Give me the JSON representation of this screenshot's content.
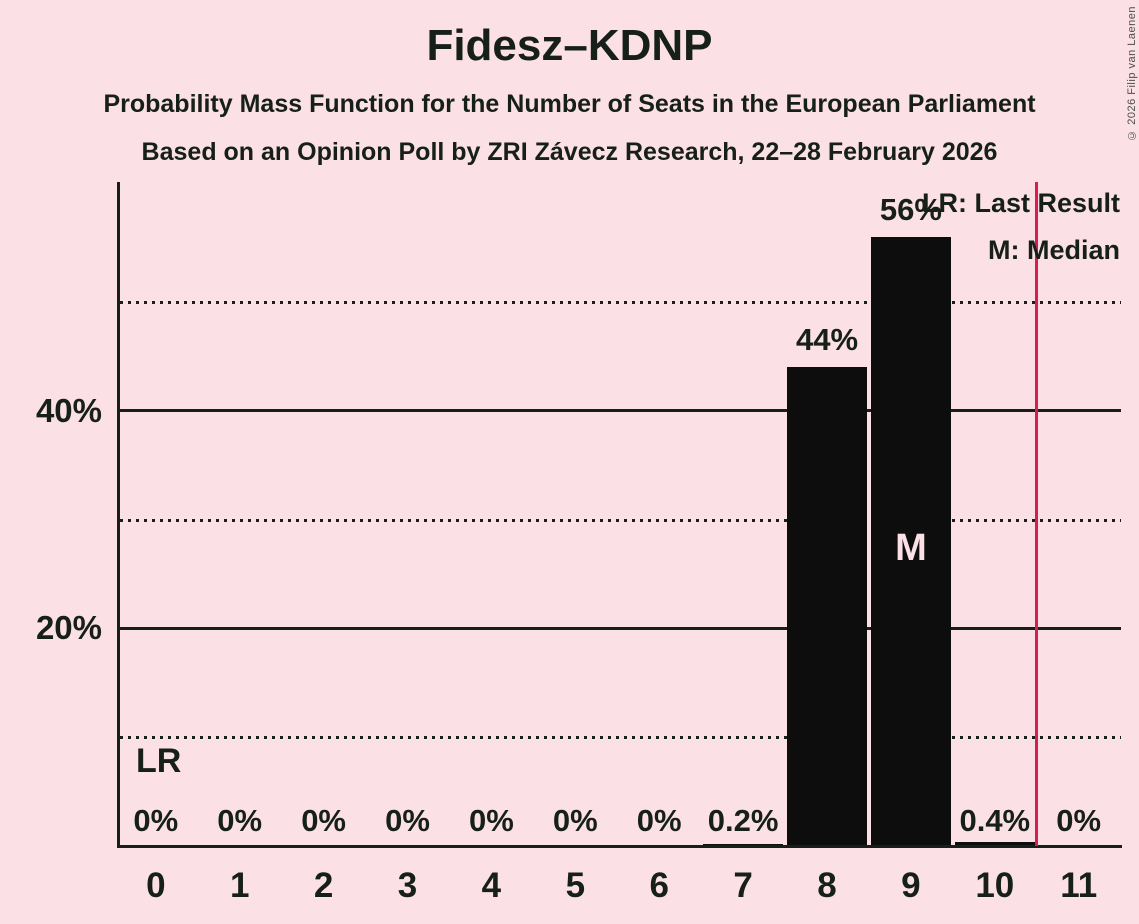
{
  "header": {
    "title": "Fidesz–KDNP",
    "subtitle1": "Probability Mass Function for the Number of Seats in the European Parliament",
    "subtitle2": "Based on an Opinion Poll by ZRI Závecz Research, 22–28 February 2026"
  },
  "copyright": "© 2026 Filip van Laenen",
  "legend": {
    "last_result": "LR: Last Result",
    "median": "M: Median"
  },
  "annotations": {
    "last_result_label": "LR",
    "median_label": "M"
  },
  "colors": {
    "background": "#fbe1e5",
    "text": "#171f1b",
    "bar": "#0d0d0d",
    "last_result_line": "#d81e4c",
    "median_text": "#fbe1e5",
    "copyright_text": "#4d4d4d"
  },
  "chart_data": {
    "type": "bar",
    "title": "Fidesz–KDNP",
    "categories": [
      "0",
      "1",
      "2",
      "3",
      "4",
      "5",
      "6",
      "7",
      "8",
      "9",
      "10",
      "11"
    ],
    "values": [
      0,
      0,
      0,
      0,
      0,
      0,
      0,
      0.2,
      44,
      56,
      0.4,
      0
    ],
    "value_labels": [
      "0%",
      "0%",
      "0%",
      "0%",
      "0%",
      "0%",
      "0%",
      "0.2%",
      "44%",
      "56%",
      "0.4%",
      "0%"
    ],
    "xlabel": "",
    "ylabel": "",
    "y_axis": {
      "unit": "%",
      "solid_gridlines": [
        {
          "value": 20,
          "label": "20%"
        },
        {
          "value": 40,
          "label": "40%"
        }
      ],
      "dotted_gridlines": [
        10,
        30,
        50
      ],
      "min": 0,
      "max": 61
    },
    "median_category_index": 9,
    "last_result_axis_position": 10.5,
    "legend_position": "top-right",
    "grid": "horizontal"
  }
}
